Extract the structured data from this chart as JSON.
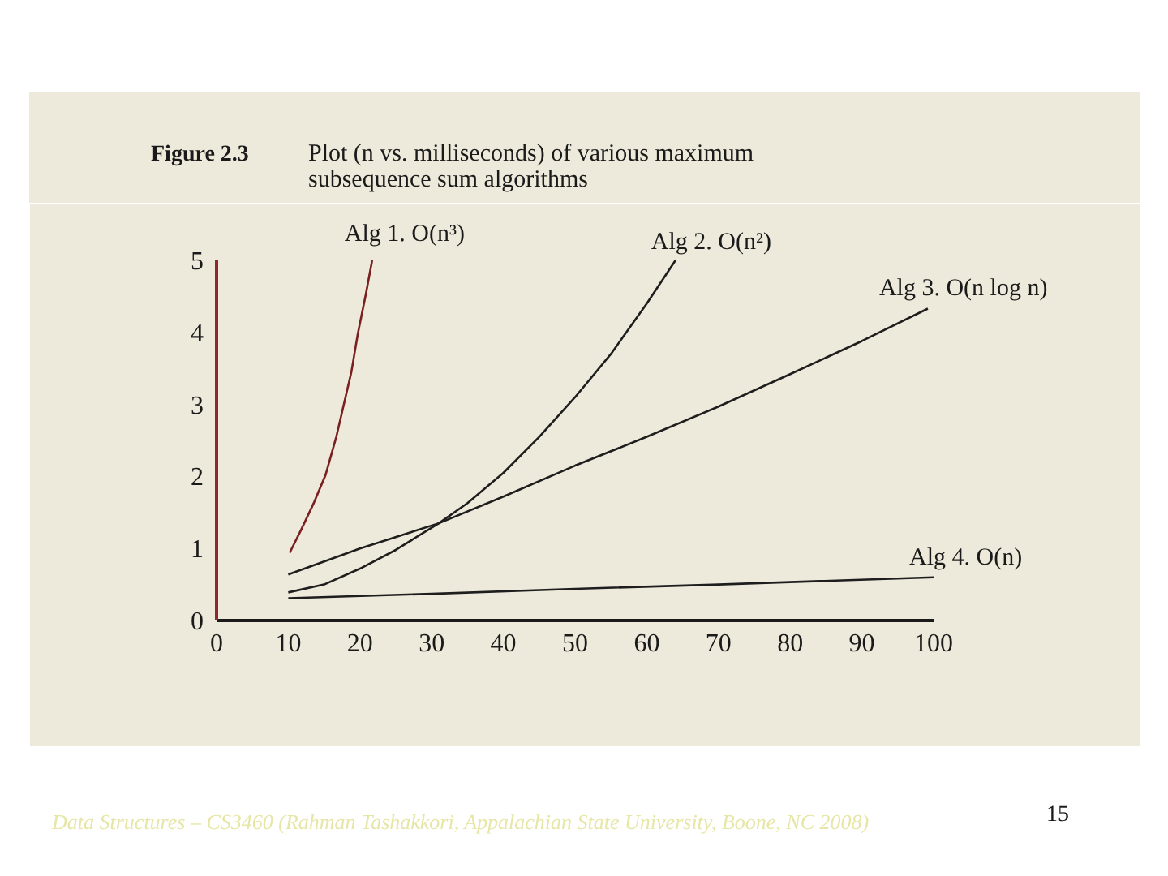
{
  "chart_data": {
    "type": "line",
    "title": "Figure 2.3",
    "subtitle": "Plot (n vs. milliseconds) of various maximum subsequence sum algorithms",
    "series": [
      {
        "name": "Alg 1. O(n³)",
        "color": "#7a2020",
        "x": [
          10.2,
          11.8,
          13.6,
          15.2,
          16.7,
          17.4,
          18.8,
          19.7,
          20.8,
          21.7
        ],
        "values": [
          0.94,
          1.26,
          1.64,
          2.02,
          2.55,
          2.85,
          3.45,
          3.98,
          4.52,
          5.0
        ]
      },
      {
        "name": "Alg 2. O(n²)",
        "color": "#1e1e1e",
        "x": [
          10,
          15,
          20,
          25,
          31,
          35,
          40,
          45,
          50,
          55,
          60,
          64
        ],
        "values": [
          0.39,
          0.5,
          0.72,
          0.98,
          1.35,
          1.63,
          2.05,
          2.55,
          3.1,
          3.7,
          4.4,
          5.0
        ]
      },
      {
        "name": "Alg 3. O(n log n)",
        "color": "#1e1e1e",
        "x": [
          10,
          20,
          31,
          40,
          50,
          60,
          70,
          80,
          90,
          99.2
        ],
        "values": [
          0.64,
          1.0,
          1.35,
          1.72,
          2.15,
          2.55,
          2.97,
          3.42,
          3.88,
          4.33
        ]
      },
      {
        "name": "Alg 4. O(n)",
        "color": "#1e1e1e",
        "x": [
          10,
          30,
          50,
          70,
          100
        ],
        "values": [
          0.31,
          0.37,
          0.44,
          0.5,
          0.6
        ]
      }
    ],
    "xlim": [
      0,
      100
    ],
    "ylim": [
      0,
      5
    ],
    "xticks": [
      0,
      10,
      20,
      30,
      40,
      50,
      60,
      70,
      80,
      90,
      100
    ],
    "yticks": [
      0,
      1,
      2,
      3,
      4,
      5
    ],
    "grid": false,
    "legend": false,
    "annotations": [
      "Data Structures – CS3460 (Rahman Tashakkori, Appalachian State University, Boone, NC 2008)",
      "15"
    ]
  }
}
